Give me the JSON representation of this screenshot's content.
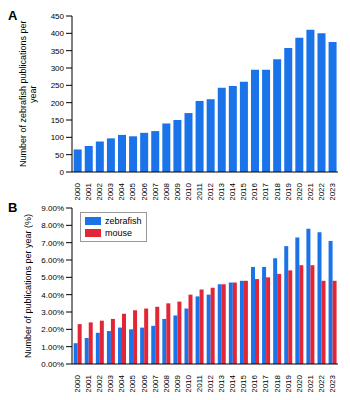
{
  "chart_data": [
    {
      "type": "bar",
      "title": "A",
      "y_label": "Number of zebrafish publications per year",
      "categories": [
        "2000",
        "2001",
        "2002",
        "2003",
        "2004",
        "2005",
        "2006",
        "2007",
        "2008",
        "2009",
        "2010",
        "2011",
        "2012",
        "2013",
        "2014",
        "2015",
        "2016",
        "2017",
        "2018",
        "2019",
        "2020",
        "2021",
        "2022",
        "2023"
      ],
      "values": [
        65,
        75,
        88,
        97,
        107,
        103,
        113,
        118,
        140,
        150,
        170,
        205,
        210,
        243,
        248,
        260,
        295,
        295,
        325,
        358,
        387,
        410,
        400,
        375
      ],
      "color": "#1a73e8",
      "ylim": [
        0,
        450
      ],
      "yticks": [
        0,
        50,
        100,
        150,
        200,
        250,
        300,
        350,
        400,
        450
      ],
      "grid": false
    },
    {
      "type": "bar",
      "title": "B",
      "y_label": "Number of publications per year (%)",
      "categories": [
        "2000",
        "2001",
        "2002",
        "2003",
        "2004",
        "2005",
        "2006",
        "2007",
        "2008",
        "2009",
        "2010",
        "2011",
        "2012",
        "2013",
        "2014",
        "2015",
        "2016",
        "2017",
        "2018",
        "2019",
        "2020",
        "2021",
        "2022",
        "2023"
      ],
      "series": [
        {
          "name": "zebrafish",
          "color": "#1a73e8",
          "values": [
            1.2,
            1.5,
            1.8,
            1.9,
            2.1,
            2.0,
            2.1,
            2.2,
            2.6,
            2.8,
            3.2,
            3.9,
            4.0,
            4.6,
            4.7,
            4.8,
            5.6,
            5.6,
            6.1,
            6.8,
            7.3,
            7.8,
            7.6,
            7.1
          ]
        },
        {
          "name": "mouse",
          "color": "#e32636",
          "values": [
            2.3,
            2.4,
            2.5,
            2.6,
            2.9,
            3.1,
            3.2,
            3.3,
            3.5,
            3.6,
            4.0,
            4.3,
            4.4,
            4.6,
            4.7,
            4.8,
            4.9,
            5.0,
            5.2,
            5.4,
            5.7,
            5.7,
            4.8,
            4.8
          ]
        }
      ],
      "ylim": [
        0,
        9
      ],
      "yticks": [
        {
          "value": 0,
          "label": "0.00%"
        },
        {
          "value": 1,
          "label": "1.00%"
        },
        {
          "value": 2,
          "label": "2.00%"
        },
        {
          "value": 3,
          "label": "3.00%"
        },
        {
          "value": 4,
          "label": "4.00%"
        },
        {
          "value": 5,
          "label": "5.00%"
        },
        {
          "value": 6,
          "label": "6.00%"
        },
        {
          "value": 7,
          "label": "7.00%"
        },
        {
          "value": 8,
          "label": "8.00%"
        },
        {
          "value": 9,
          "label": "9.00%"
        }
      ],
      "legend": "upper left",
      "grid": false
    }
  ]
}
